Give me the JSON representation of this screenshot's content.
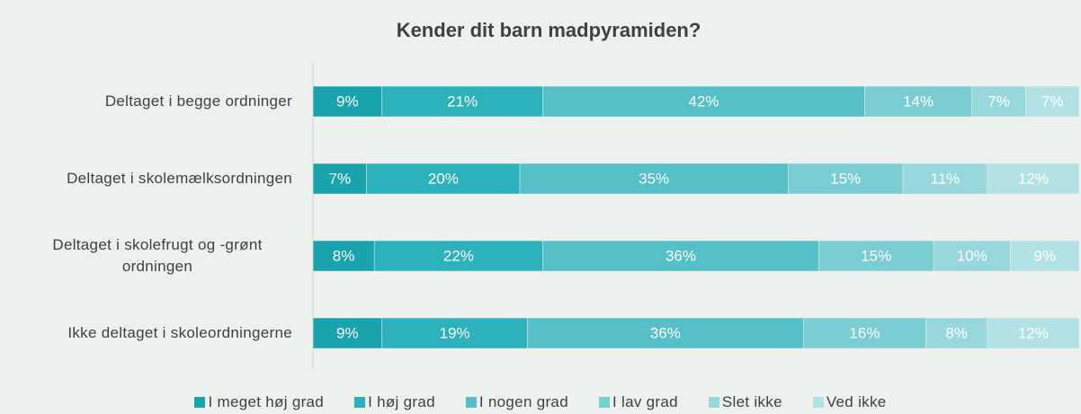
{
  "chart_data": {
    "type": "stacked-bar-horizontal",
    "title": "Kender dit barn madpyramiden?",
    "categories": [
      "Deltaget i begge ordninger",
      "Deltaget i skolemælksordningen",
      "Deltaget i skolefrugt og -grønt ordningen",
      "Ikke deltaget i skoleordningerne"
    ],
    "xlim": [
      0,
      100
    ],
    "series": [
      {
        "name": "I meget høj grad",
        "color": "#18a3ad",
        "values": [
          9,
          7,
          8,
          9
        ],
        "value_labels": [
          "9%",
          "7%",
          "8%",
          "9%"
        ]
      },
      {
        "name": "I høj grad",
        "color": "#2db1bb",
        "values": [
          21,
          20,
          22,
          19
        ],
        "value_labels": [
          "21%",
          "20%",
          "22%",
          "19%"
        ]
      },
      {
        "name": "I nogen grad",
        "color": "#55c0c8",
        "values": [
          42,
          35,
          36,
          36
        ],
        "value_labels": [
          "42%",
          "35%",
          "36%",
          "36%"
        ]
      },
      {
        "name": "I lav grad",
        "color": "#7acdd3",
        "values": [
          14,
          15,
          15,
          16
        ],
        "value_labels": [
          "14%",
          "15%",
          "15%",
          "16%"
        ]
      },
      {
        "name": "Slet ikke",
        "color": "#98d8dd",
        "values": [
          7,
          11,
          10,
          8
        ],
        "value_labels": [
          "7%",
          "11%",
          "10%",
          "8%"
        ]
      },
      {
        "name": "Ved ikke",
        "color": "#b3e2e5",
        "values": [
          7,
          12,
          9,
          12
        ],
        "value_labels": [
          "7%",
          "12%",
          "9%",
          "12%"
        ]
      }
    ],
    "legend": "bottom"
  }
}
